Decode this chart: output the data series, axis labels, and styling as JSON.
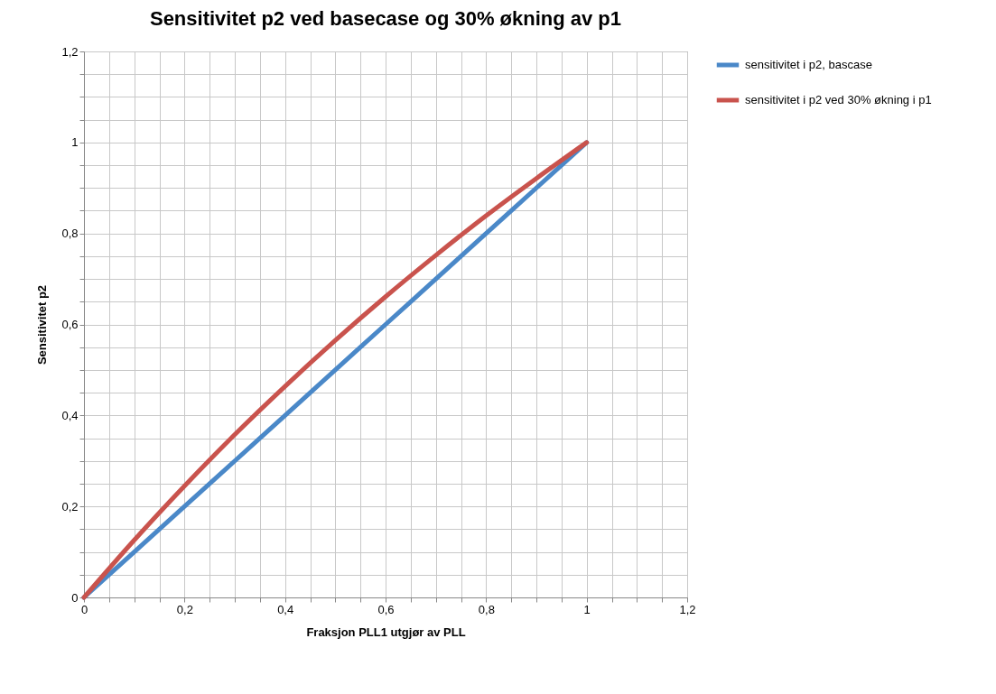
{
  "chart_data": {
    "type": "line",
    "title": "Sensitivitet p2 ved basecase og 30% økning av p1",
    "xlabel": "Fraksjon PLL1 utgjør av PLL",
    "ylabel": "Sensitivitet p2",
    "x": [
      0,
      0.1,
      0.2,
      0.3,
      0.4,
      0.5,
      0.6,
      0.7,
      0.8,
      0.9,
      1
    ],
    "series": [
      {
        "name": "sensitivitet i p2, bascase",
        "color": "#4a88c8",
        "values": [
          0,
          0.1,
          0.2,
          0.3,
          0.4,
          0.5,
          0.6,
          0.7,
          0.8,
          0.9,
          1
        ]
      },
      {
        "name": "sensitivitet i p2 ved 30% økning i p1",
        "color": "#c9534d",
        "values": [
          0,
          0.126,
          0.245,
          0.358,
          0.464,
          0.565,
          0.661,
          0.752,
          0.839,
          0.921,
          1
        ]
      }
    ],
    "xlim": [
      0,
      1.2
    ],
    "ylim": [
      0,
      1.2
    ],
    "xticks": [
      0,
      {
        "value": 0.05,
        "label": null
      },
      {
        "value": 0.1,
        "label": null
      },
      {
        "value": 0.15,
        "label": null
      },
      {
        "value": 0.2,
        "label": "0,2"
      },
      {
        "value": 0.25,
        "label": null
      },
      {
        "value": 0.3,
        "label": null
      },
      {
        "value": 0.35,
        "label": null
      },
      {
        "value": 0.4,
        "label": "0,4"
      },
      {
        "value": 0.45,
        "label": null
      },
      {
        "value": 0.5,
        "label": null
      },
      {
        "value": 0.55,
        "label": null
      },
      {
        "value": 0.6,
        "label": "0,6"
      },
      {
        "value": 0.65,
        "label": null
      },
      {
        "value": 0.7,
        "label": null
      },
      {
        "value": 0.75,
        "label": null
      },
      {
        "value": 0.8,
        "label": "0,8"
      },
      {
        "value": 0.85,
        "label": null
      },
      {
        "value": 0.9,
        "label": null
      },
      {
        "value": 0.95,
        "label": null
      },
      1,
      {
        "value": 1.05,
        "label": null
      },
      {
        "value": 1.1,
        "label": null
      },
      {
        "value": 1.15,
        "label": null
      },
      {
        "value": 1.2,
        "label": "1,2"
      }
    ],
    "yticks": [
      0,
      {
        "value": 0.05,
        "label": null
      },
      {
        "value": 0.1,
        "label": null
      },
      {
        "value": 0.15,
        "label": null
      },
      {
        "value": 0.2,
        "label": "0,2"
      },
      {
        "value": 0.25,
        "label": null
      },
      {
        "value": 0.3,
        "label": null
      },
      {
        "value": 0.35,
        "label": null
      },
      {
        "value": 0.4,
        "label": "0,4"
      },
      {
        "value": 0.45,
        "label": null
      },
      {
        "value": 0.5,
        "label": null
      },
      {
        "value": 0.55,
        "label": null
      },
      {
        "value": 0.6,
        "label": "0,6"
      },
      {
        "value": 0.65,
        "label": null
      },
      {
        "value": 0.7,
        "label": null
      },
      {
        "value": 0.75,
        "label": null
      },
      {
        "value": 0.8,
        "label": "0,8"
      },
      {
        "value": 0.85,
        "label": null
      },
      {
        "value": 0.9,
        "label": null
      },
      {
        "value": 0.95,
        "label": null
      },
      1,
      {
        "value": 1.05,
        "label": null
      },
      {
        "value": 1.1,
        "label": null
      },
      {
        "value": 1.15,
        "label": null
      },
      {
        "value": 1.2,
        "label": "1,2"
      }
    ],
    "grid": true,
    "legend": "right",
    "marker": "none",
    "line_style": "solid"
  }
}
